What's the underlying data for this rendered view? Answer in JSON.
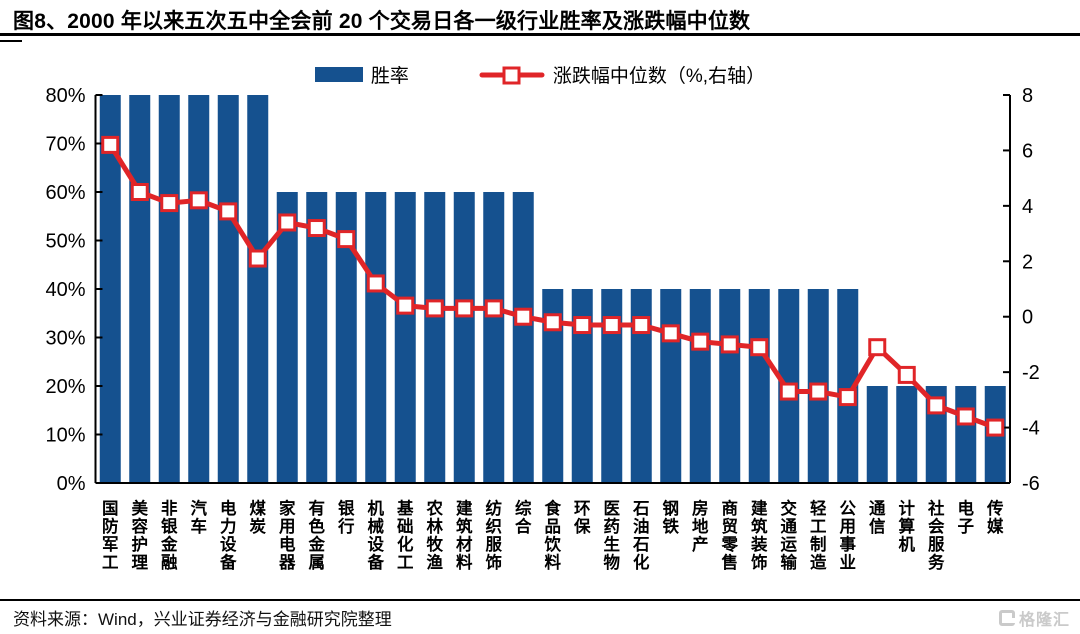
{
  "page": {
    "title": "图8、2000 年以来五次五中全会前 20 个交易日各一级行业胜率及涨跌幅中位数",
    "source": "资料来源：Wind，兴业证券经济与金融研究院整理",
    "watermark": "格隆汇"
  },
  "legend": {
    "bar_label": "胜率",
    "line_label": "涨跌幅中位数（%,右轴）"
  },
  "colors": {
    "bar": "#15518F",
    "line": "#E02528",
    "marker_fill": "#FFFFFF",
    "axis": "#000000",
    "text": "#000000",
    "watermark": "#CACACA"
  },
  "chart_data": {
    "type": "bar",
    "subtype": "bar+line-dual-axis",
    "title": "2000年以来五次五中全会前20个交易日各一级行业胜率及涨跌幅中位数",
    "categories": [
      "国防军工",
      "美容护理",
      "非银金融",
      "汽车",
      "电力设备",
      "煤炭",
      "家用电器",
      "有色金属",
      "银行",
      "机械设备",
      "基础化工",
      "农林牧渔",
      "建筑材料",
      "纺织服饰",
      "综合",
      "食品饮料",
      "环保",
      "医药生物",
      "石油石化",
      "钢铁",
      "房地产",
      "商贸零售",
      "建筑装饰",
      "交通运输",
      "轻工制造",
      "公用事业",
      "通信",
      "计算机",
      "社会服务",
      "电子",
      "传媒"
    ],
    "series": [
      {
        "name": "胜率",
        "type": "bar",
        "axis": "left",
        "unit": "%",
        "values": [
          80,
          80,
          80,
          80,
          80,
          80,
          60,
          60,
          60,
          60,
          60,
          60,
          60,
          60,
          60,
          40,
          40,
          40,
          40,
          40,
          40,
          40,
          40,
          40,
          40,
          40,
          20,
          20,
          20,
          20,
          20
        ]
      },
      {
        "name": "涨跌幅中位数",
        "type": "line",
        "axis": "right",
        "unit": "%",
        "values": [
          6.2,
          4.5,
          4.1,
          4.2,
          3.8,
          2.1,
          3.4,
          3.2,
          2.8,
          1.2,
          0.4,
          0.3,
          0.3,
          0.3,
          0.0,
          -0.2,
          -0.3,
          -0.3,
          -0.3,
          -0.6,
          -0.9,
          -1.0,
          -1.1,
          -2.7,
          -2.7,
          -2.9,
          -1.1,
          -2.1,
          -3.2,
          -3.6,
          -4.0
        ]
      }
    ],
    "left_axis": {
      "min": 0,
      "max": 80,
      "tick_step": 10,
      "tick_labels": [
        "0%",
        "10%",
        "20%",
        "30%",
        "40%",
        "50%",
        "60%",
        "70%",
        "80%"
      ]
    },
    "right_axis": {
      "min": -6,
      "max": 8,
      "tick_step": 2,
      "tick_labels": [
        "-6",
        "-4",
        "-2",
        "0",
        "2",
        "4",
        "6",
        "8"
      ]
    },
    "grid": false,
    "legend_position": "top-center"
  }
}
